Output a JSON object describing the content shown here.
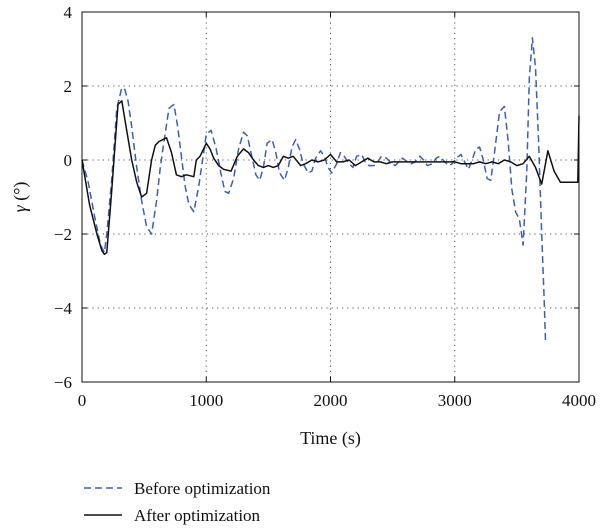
{
  "chart_data": {
    "type": "line",
    "xlabel": "Time (s)",
    "ylabel_symbol": "γ",
    "ylabel_unit": " (°)",
    "xlim": [
      0,
      4000
    ],
    "ylim": [
      -6,
      4
    ],
    "xticks": [
      0,
      1000,
      2000,
      3000,
      4000
    ],
    "yticks": [
      4,
      2,
      0,
      -2,
      -4,
      -6
    ],
    "xtick_labels": [
      "0",
      "1000",
      "2000",
      "3000",
      "4000"
    ],
    "ytick_labels": [
      "4",
      "2",
      "0",
      "−2",
      "−4",
      "−6"
    ],
    "grid": "dotted",
    "legend_position": "below",
    "series": [
      {
        "name": "Before optimization",
        "color": "#3b5fb5",
        "dash": "dashed",
        "x": [
          0,
          50,
          100,
          150,
          180,
          200,
          240,
          280,
          320,
          345,
          370,
          400,
          440,
          480,
          520,
          560,
          600,
          630,
          660,
          700,
          740,
          770,
          800,
          830,
          860,
          900,
          940,
          975,
          1000,
          1040,
          1080,
          1120,
          1150,
          1180,
          1220,
          1260,
          1300,
          1330,
          1360,
          1400,
          1430,
          1460,
          1490,
          1530,
          1560,
          1590,
          1630,
          1660,
          1690,
          1720,
          1750,
          1780,
          1820,
          1850,
          1880,
          1920,
          1950,
          1980,
          2010,
          2050,
          2080,
          2110,
          2150,
          2180,
          2210,
          2250,
          2280,
          2310,
          2350,
          2380,
          2410,
          2450,
          2480,
          2520,
          2550,
          2580,
          2620,
          2650,
          2680,
          2720,
          2750,
          2780,
          2820,
          2850,
          2880,
          2920,
          2950,
          2980,
          3010,
          3050,
          3080,
          3110,
          3140,
          3170,
          3200,
          3230,
          3260,
          3290,
          3320,
          3360,
          3400,
          3430,
          3460,
          3490,
          3520,
          3550,
          3580,
          3600,
          3625,
          3650,
          3675,
          3700,
          3720,
          3730
        ],
        "y": [
          0,
          -0.6,
          -1.5,
          -2.3,
          -2.5,
          -2.0,
          -0.5,
          1.4,
          1.95,
          1.9,
          1.6,
          0.9,
          -0.2,
          -1.1,
          -1.8,
          -2.0,
          -1.1,
          -0.2,
          0.5,
          1.4,
          1.5,
          0.9,
          0.1,
          -0.7,
          -1.2,
          -1.4,
          -0.7,
          0.1,
          0.7,
          0.8,
          0.3,
          -0.4,
          -0.85,
          -0.9,
          -0.5,
          0.3,
          0.75,
          0.65,
          0.2,
          -0.4,
          -0.55,
          -0.2,
          0.45,
          0.55,
          0.2,
          -0.35,
          -0.55,
          -0.2,
          0.35,
          0.55,
          0.3,
          -0.1,
          -0.35,
          -0.3,
          0.05,
          0.25,
          0.1,
          -0.2,
          -0.35,
          -0.1,
          0.2,
          0.1,
          -0.1,
          -0.2,
          0.1,
          0.15,
          -0.05,
          -0.15,
          -0.15,
          -0.05,
          0.1,
          0.05,
          -0.05,
          -0.15,
          -0.05,
          0.05,
          -0.05,
          -0.1,
          -0.05,
          0.1,
          0.0,
          -0.15,
          -0.1,
          0.05,
          0.1,
          -0.05,
          -0.15,
          -0.1,
          0.05,
          0.15,
          -0.05,
          -0.25,
          0.0,
          0.3,
          0.35,
          0.0,
          -0.5,
          -0.55,
          0.2,
          1.3,
          1.45,
          0.5,
          -0.8,
          -1.4,
          -1.6,
          -2.3,
          -0.3,
          2.2,
          3.3,
          2.5,
          0.5,
          -2.0,
          -3.8,
          -4.9
        ]
      },
      {
        "name": "After optimization",
        "color": "#111111",
        "dash": "solid",
        "x": [
          0,
          60,
          120,
          160,
          180,
          200,
          240,
          290,
          320,
          360,
          400,
          440,
          480,
          520,
          560,
          590,
          620,
          680,
          720,
          760,
          800,
          840,
          900,
          920,
          950,
          1000,
          1030,
          1060,
          1100,
          1140,
          1200,
          1250,
          1300,
          1340,
          1380,
          1420,
          1460,
          1500,
          1540,
          1580,
          1620,
          1660,
          1700,
          1760,
          1800,
          1850,
          1900,
          1950,
          2000,
          2050,
          2100,
          2150,
          2200,
          2250,
          2300,
          2350,
          2400,
          2450,
          2500,
          2550,
          2600,
          2650,
          2700,
          2750,
          2800,
          2850,
          2900,
          2950,
          3000,
          3050,
          3100,
          3150,
          3200,
          3250,
          3300,
          3350,
          3400,
          3450,
          3500,
          3550,
          3600,
          3650,
          3700,
          3750,
          3800,
          3850,
          3900,
          3950,
          3990,
          4000
        ],
        "y": [
          0,
          -1.2,
          -2.0,
          -2.45,
          -2.55,
          -2.5,
          -0.8,
          1.5,
          1.6,
          0.8,
          0.0,
          -0.6,
          -1.0,
          -0.9,
          0.0,
          0.4,
          0.5,
          0.6,
          0.2,
          -0.4,
          -0.45,
          -0.4,
          -0.45,
          0.0,
          0.1,
          0.45,
          0.3,
          0.05,
          -0.15,
          -0.25,
          -0.3,
          0.1,
          0.3,
          0.2,
          0.0,
          -0.15,
          -0.2,
          -0.15,
          -0.2,
          -0.15,
          0.1,
          0.05,
          0.1,
          -0.15,
          -0.1,
          0.0,
          -0.05,
          0.0,
          0.15,
          -0.05,
          -0.05,
          0.0,
          -0.15,
          -0.05,
          0.05,
          -0.05,
          -0.05,
          -0.1,
          -0.05,
          -0.05,
          -0.05,
          -0.05,
          -0.05,
          -0.05,
          -0.05,
          -0.05,
          -0.05,
          -0.05,
          -0.05,
          -0.1,
          -0.1,
          -0.1,
          -0.05,
          -0.1,
          -0.05,
          -0.1,
          0.0,
          -0.05,
          -0.15,
          -0.1,
          0.1,
          -0.2,
          -0.65,
          0.25,
          -0.3,
          -0.6,
          -0.6,
          -0.6,
          -0.6,
          1.2
        ]
      }
    ]
  }
}
